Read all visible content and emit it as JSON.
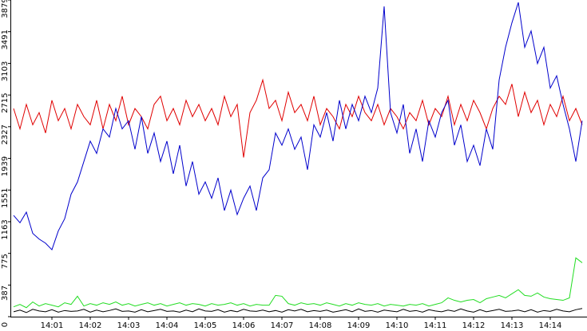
{
  "chart_data": {
    "type": "line",
    "categories": [
      null,
      null,
      null,
      null,
      null,
      null,
      "14:01",
      null,
      null,
      null,
      null,
      null,
      "14:02",
      null,
      null,
      null,
      null,
      null,
      "14:03",
      null,
      null,
      null,
      null,
      null,
      "14:04",
      null,
      null,
      null,
      null,
      null,
      "14:05",
      null,
      null,
      null,
      null,
      null,
      "14:06",
      null,
      null,
      null,
      null,
      null,
      "14:07",
      null,
      null,
      null,
      null,
      null,
      "14:08",
      null,
      null,
      null,
      null,
      null,
      "14:09",
      null,
      null,
      null,
      null,
      null,
      "14:10",
      null,
      null,
      null,
      null,
      null,
      "14:11",
      null,
      null,
      null,
      null,
      null,
      "14:12",
      null,
      null,
      null,
      null,
      null,
      "14:13",
      null,
      null,
      null,
      null,
      null,
      "14:14",
      null,
      null,
      null,
      null,
      null
    ],
    "series": [
      {
        "color": "#e00000",
        "values": [
          2550,
          2300,
          2600,
          2350,
          2500,
          2250,
          2650,
          2400,
          2550,
          2300,
          2600,
          2450,
          2350,
          2650,
          2300,
          2600,
          2400,
          2700,
          2350,
          2550,
          2450,
          2300,
          2600,
          2700,
          2400,
          2550,
          2350,
          2650,
          2450,
          2600,
          2400,
          2550,
          2350,
          2700,
          2450,
          2600,
          1950,
          2500,
          2650,
          2900,
          2550,
          2650,
          2400,
          2750,
          2500,
          2600,
          2400,
          2700,
          2350,
          2550,
          2450,
          2300,
          2600,
          2450,
          2700,
          2500,
          2400,
          2600,
          2350,
          2550,
          2450,
          2300,
          2500,
          2400,
          2650,
          2350,
          2550,
          2450,
          2700,
          2350,
          2600,
          2400,
          2650,
          2500,
          2300,
          2550,
          2700,
          2600,
          2850,
          2450,
          2750,
          2500,
          2650,
          2350,
          2600,
          2450,
          2700,
          2400,
          2550,
          2350
        ]
      },
      {
        "color": "#0000cc",
        "values": [
          1240,
          1150,
          1280,
          1020,
          950,
          900,
          820,
          1050,
          1200,
          1500,
          1650,
          1900,
          2150,
          2000,
          2300,
          2200,
          2550,
          2300,
          2400,
          2050,
          2450,
          2000,
          2250,
          1900,
          2150,
          1750,
          2100,
          1600,
          1900,
          1500,
          1650,
          1450,
          1700,
          1300,
          1550,
          1250,
          1450,
          1600,
          1300,
          1700,
          1800,
          2250,
          2100,
          2300,
          2050,
          2200,
          1800,
          2350,
          2200,
          2500,
          2150,
          2650,
          2300,
          2600,
          2400,
          2700,
          2500,
          2800,
          3800,
          2500,
          2250,
          2600,
          2000,
          2300,
          1900,
          2400,
          2200,
          2500,
          2650,
          2100,
          2350,
          1900,
          2100,
          1850,
          2300,
          2050,
          2900,
          3300,
          3600,
          3850,
          3300,
          3500,
          3100,
          3300,
          2800,
          2950,
          2600,
          2300,
          1900,
          2400
        ]
      },
      {
        "color": "#22dd22",
        "values": [
          120,
          150,
          110,
          180,
          130,
          160,
          140,
          120,
          170,
          150,
          250,
          130,
          160,
          140,
          170,
          150,
          180,
          140,
          160,
          130,
          150,
          170,
          140,
          160,
          130,
          150,
          170,
          140,
          160,
          150,
          130,
          160,
          140,
          150,
          170,
          140,
          160,
          130,
          150,
          140,
          140,
          260,
          250,
          160,
          140,
          170,
          150,
          160,
          140,
          170,
          150,
          130,
          160,
          140,
          170,
          150,
          140,
          160,
          130,
          150,
          140,
          130,
          150,
          140,
          160,
          130,
          150,
          170,
          230,
          200,
          180,
          200,
          210,
          170,
          220,
          240,
          260,
          230,
          280,
          330,
          260,
          250,
          290,
          240,
          220,
          210,
          200,
          230,
          720,
          660
        ]
      },
      {
        "color": "#000000",
        "values": [
          60,
          80,
          50,
          90,
          70,
          60,
          85,
          55,
          75,
          65,
          70,
          90,
          55,
          80,
          60,
          75,
          95,
          65,
          70,
          55,
          85,
          60,
          75,
          90,
          65,
          70,
          55,
          80,
          60,
          95,
          70,
          65,
          85,
          55,
          75,
          60,
          90,
          70,
          65,
          80,
          60,
          75,
          55,
          85,
          70,
          90,
          60,
          75,
          65,
          80,
          55,
          70,
          85,
          60,
          95,
          65,
          75,
          55,
          80,
          70,
          60,
          90,
          65,
          75,
          55,
          85,
          70,
          60,
          80,
          65,
          95,
          70,
          55,
          85,
          60,
          75,
          90,
          65,
          70,
          80,
          60,
          85,
          55,
          75,
          65,
          90,
          70,
          60,
          85,
          100
        ]
      }
    ],
    "ylim": [
      0,
      3879
    ],
    "yticks": [
      0,
      387,
      775,
      1163,
      1551,
      1939,
      2327,
      2715,
      3103,
      3491,
      3879
    ]
  }
}
